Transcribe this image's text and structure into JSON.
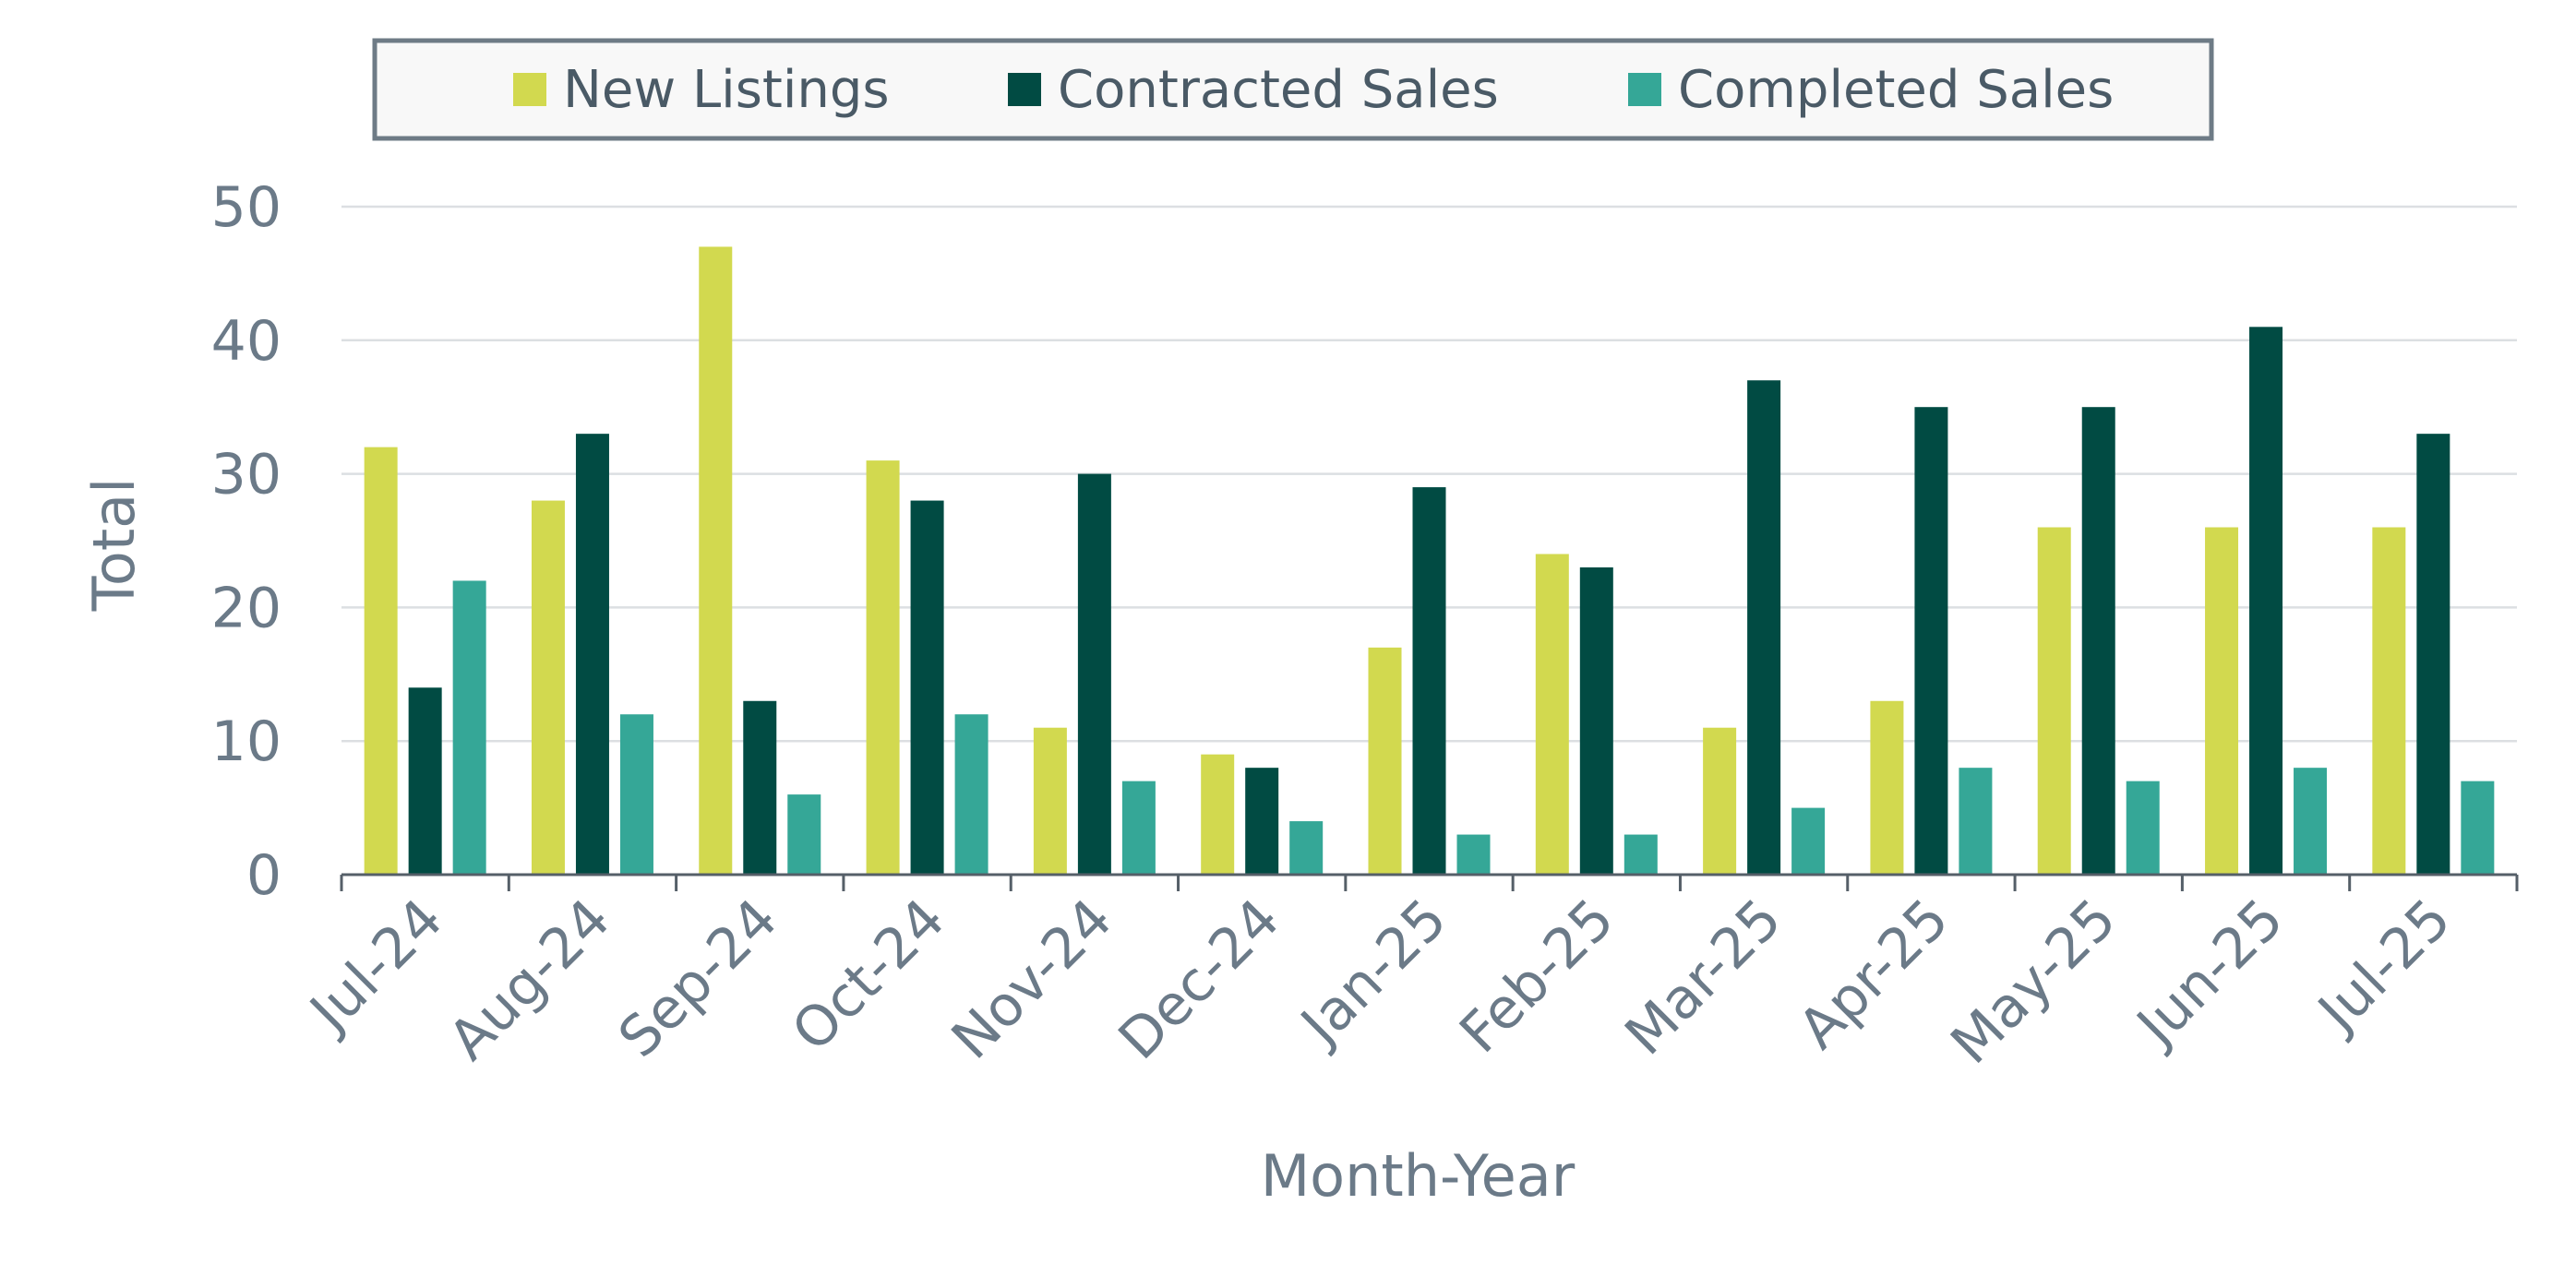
{
  "chart_data": {
    "type": "bar",
    "xlabel": "Month-Year",
    "ylabel": "Total",
    "ylim": [
      0,
      50
    ],
    "yticks": [
      0,
      10,
      20,
      30,
      40,
      50
    ],
    "grid": true,
    "legend_position": "top",
    "categories": [
      "Jul-24",
      "Aug-24",
      "Sep-24",
      "Oct-24",
      "Nov-24",
      "Dec-24",
      "Jan-25",
      "Feb-25",
      "Mar-25",
      "Apr-25",
      "May-25",
      "Jun-25",
      "Jul-25"
    ],
    "series": [
      {
        "name": "New Listings",
        "color": "#d2d94f",
        "values": [
          32,
          28,
          47,
          31,
          11,
          9,
          17,
          24,
          11,
          13,
          26,
          26,
          26
        ]
      },
      {
        "name": "Contracted Sales",
        "color": "#014b43",
        "values": [
          14,
          33,
          13,
          28,
          30,
          8,
          29,
          23,
          37,
          35,
          35,
          41,
          33
        ]
      },
      {
        "name": "Completed Sales",
        "color": "#35a797",
        "values": [
          22,
          12,
          6,
          12,
          7,
          4,
          3,
          3,
          5,
          8,
          7,
          8,
          7
        ]
      }
    ]
  }
}
